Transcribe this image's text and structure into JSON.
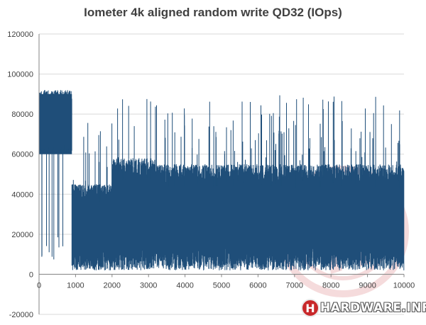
{
  "chart_data": {
    "type": "area",
    "title": "Iometer 4k aligned random write QD32 (IOps)",
    "xlabel": "",
    "ylabel": "",
    "xlim": [
      0,
      10000
    ],
    "ylim": [
      -20000,
      120000
    ],
    "x_ticks": [
      0,
      1000,
      2000,
      3000,
      4000,
      5000,
      6000,
      7000,
      8000,
      9000,
      10000
    ],
    "y_ticks": [
      -20000,
      0,
      20000,
      40000,
      60000,
      80000,
      100000,
      120000
    ],
    "grid": true,
    "legend": "none",
    "series": [
      {
        "color": "#1f4e79",
        "segments": [
          {
            "x_start": 0,
            "x_end": 900,
            "low": 60000,
            "high": 92000,
            "min_dip": 5000
          },
          {
            "x_start": 900,
            "x_end": 2000,
            "low": 2000,
            "high": 45000,
            "spike_max": 78000
          },
          {
            "x_start": 2000,
            "x_end": 3200,
            "low": 2000,
            "high": 58000,
            "spike_max": 88000
          },
          {
            "x_start": 3200,
            "x_end": 10000,
            "low": 2000,
            "high": 55000,
            "spike_max": 90000
          }
        ]
      }
    ]
  },
  "watermark": {
    "badge": "H",
    "text": "HARDWARE.INFO"
  }
}
